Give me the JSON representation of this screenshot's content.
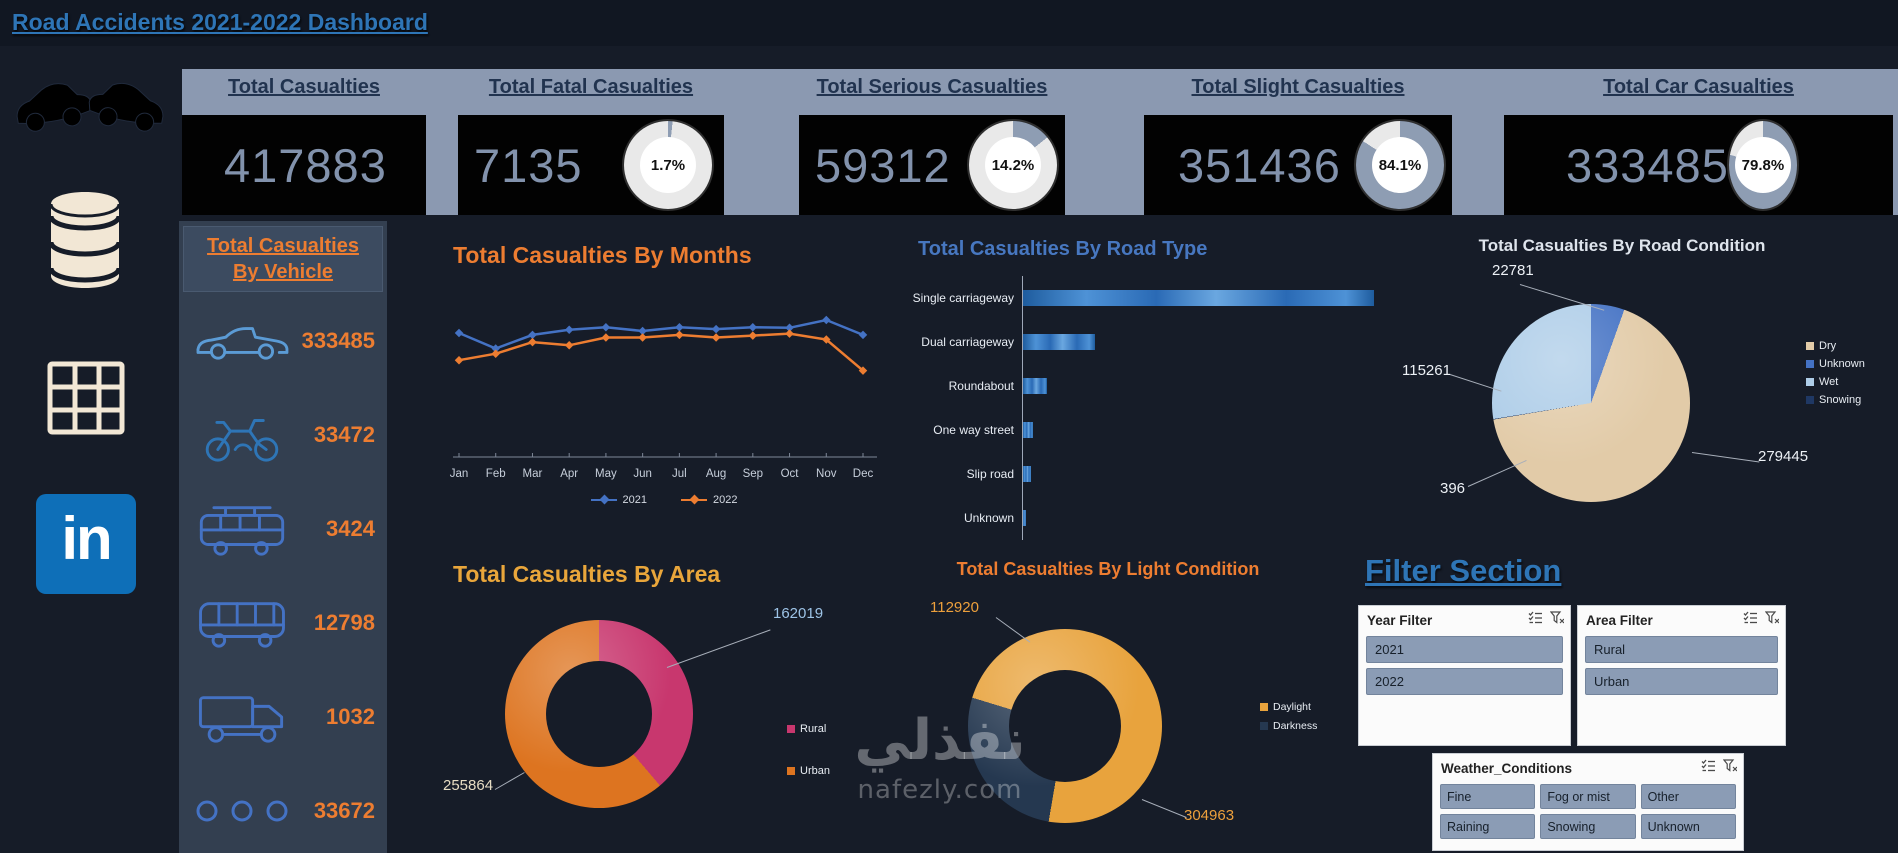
{
  "page": {
    "title": "Road Accidents 2021-2022 Dashboard"
  },
  "sidebar": {
    "icons": [
      "car-crash-icon",
      "database-icon",
      "table-icon",
      "linkedin-icon"
    ],
    "linkedin_label": "in"
  },
  "kpis": [
    {
      "title": "Total Casualties",
      "value": "417883",
      "donut": null,
      "donut_pct": null
    },
    {
      "title": "Total Fatal Casualties",
      "value": "7135",
      "donut": "1.7%",
      "donut_pct": 1.7
    },
    {
      "title": "Total Serious Casualties",
      "value": "59312",
      "donut": "14.2%",
      "donut_pct": 14.2
    },
    {
      "title": "Total Slight Casualties",
      "value": "351436",
      "donut": "84.1%",
      "donut_pct": 84.1
    },
    {
      "title": "Total Car Casualties",
      "value": "333485",
      "donut": "79.8%",
      "donut_pct": 79.8
    }
  ],
  "vehicle_panel": {
    "title_line1": "Total Casualties",
    "title_line2": "By Vehicle",
    "items": [
      {
        "icon": "car",
        "value": "333485"
      },
      {
        "icon": "motorcycle",
        "value": "33472"
      },
      {
        "icon": "van",
        "value": "3424"
      },
      {
        "icon": "bus",
        "value": "12798"
      },
      {
        "icon": "truck",
        "value": "1032"
      },
      {
        "icon": "other",
        "value": "33672"
      }
    ]
  },
  "chart_data": [
    {
      "type": "line",
      "title": "Total Casualties By Months",
      "categories": [
        "Jan",
        "Feb",
        "Mar",
        "Apr",
        "May",
        "Jun",
        "Jul",
        "Aug",
        "Sep",
        "Oct",
        "Nov",
        "Dec"
      ],
      "series": [
        {
          "name": "2021",
          "color": "#4472C4",
          "values": [
            34800,
            33600,
            34650,
            35050,
            35250,
            34950,
            35250,
            35100,
            35250,
            35200,
            35800,
            34650
          ]
        },
        {
          "name": "2022",
          "color": "#ED7D31",
          "values": [
            32700,
            33200,
            34100,
            33850,
            34450,
            34450,
            34650,
            34450,
            34600,
            34750,
            34300,
            31900
          ]
        }
      ],
      "ylim": [
        26000,
        37500
      ],
      "legend_position": "bottom"
    },
    {
      "type": "bar",
      "title": "Total Casualties By Road Type",
      "orientation": "horizontal",
      "categories": [
        "Single carriageway",
        "Dual carriageway",
        "Roundabout",
        "One way street",
        "Slip road",
        "Unknown"
      ],
      "values": [
        312000,
        64000,
        21000,
        9000,
        7000,
        2500
      ],
      "bar_color": "#2E75B6"
    },
    {
      "type": "pie",
      "title": "Total Casualties By Road Condition",
      "start_angle": 0,
      "slices": [
        {
          "label": "Unknown",
          "value": 22781,
          "color": "#4472C4"
        },
        {
          "label": "Dry",
          "value": 279445,
          "color": "#E2CBA8"
        },
        {
          "label": "Snowing",
          "value": 396,
          "color": "#1F3864"
        },
        {
          "label": "Wet",
          "value": 115261,
          "color": "#AECDE8"
        }
      ],
      "legend_order": [
        "Dry",
        "Unknown",
        "Wet",
        "Snowing"
      ],
      "legend_position": "right"
    },
    {
      "type": "pie",
      "subtype": "donut",
      "title": "Total Casualties By Area",
      "start_angle": 0,
      "slices": [
        {
          "label": "Rural",
          "value": 162019,
          "color": "#C8376E"
        },
        {
          "label": "Urban",
          "value": 255864,
          "color": "#DD7420"
        }
      ],
      "legend_order": [
        "Rural",
        "Urban"
      ],
      "legend_position": "right"
    },
    {
      "type": "pie",
      "subtype": "donut",
      "title": "Total Casualties By Light Condition",
      "start_angle": 287,
      "slices": [
        {
          "label": "Daylight",
          "value": 304963,
          "color": "#E8A33D"
        },
        {
          "label": "Darkness",
          "value": 112920,
          "color": "#253850"
        }
      ],
      "legend_order": [
        "Daylight",
        "Darkness"
      ],
      "legend_position": "right"
    }
  ],
  "filter_section": {
    "title": "Filter Section",
    "slicers": [
      {
        "name": "Year Filter",
        "items": [
          "2021",
          "2022"
        ],
        "columns": 1
      },
      {
        "name": "Area Filter",
        "items": [
          "Rural",
          "Urban"
        ],
        "columns": 1
      },
      {
        "name": "Weather_Conditions",
        "items": [
          "Fine",
          "Fog or mist",
          "Other",
          "Raining",
          "Snowing",
          "Unknown"
        ],
        "columns": 3
      }
    ]
  },
  "watermark": {
    "line1": "نفذلي",
    "line2": "nafezly.com"
  }
}
